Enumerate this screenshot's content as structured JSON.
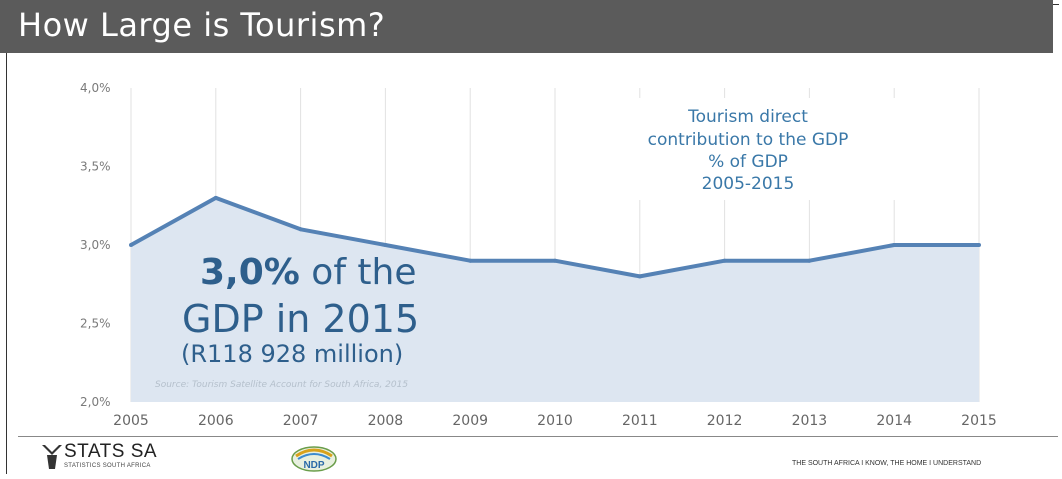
{
  "slide": {
    "title": "How Large is Tourism?"
  },
  "chart_data": {
    "type": "area",
    "title": "",
    "legend_lines": [
      "Tourism direct",
      "contribution to the GDP",
      "% of GDP",
      "2005-2015"
    ],
    "x": [
      "2005",
      "2006",
      "2007",
      "2008",
      "2009",
      "2010",
      "2011",
      "2012",
      "2013",
      "2014",
      "2015"
    ],
    "series": [
      {
        "values": [
          3.0,
          3.3,
          3.1,
          3.0,
          2.9,
          2.9,
          2.8,
          2.9,
          2.9,
          3.0,
          3.0
        ]
      }
    ],
    "y_ticks": [
      "4,0%",
      "3,5%",
      "3,0%",
      "2,5%",
      "2,0%"
    ],
    "ylim": [
      2.0,
      4.0
    ],
    "grid": "vertical",
    "line_color": "#5582b5",
    "fill_color": "#dde6f1",
    "annotation": {
      "bold": "3,0%",
      "line1_rest": " of the",
      "line2": "GDP in 2015",
      "line3": "(R118 928 million)"
    },
    "source": "Source: Tourism Satellite Account for South Africa, 2015"
  },
  "footer": {
    "logo_text": "STATS SA",
    "logo_subtext": "STATISTICS SOUTH AFRICA",
    "ndp_label": "NDP",
    "slogan": "THE SOUTH AFRICA I KNOW, THE HOME I UNDERSTAND"
  }
}
